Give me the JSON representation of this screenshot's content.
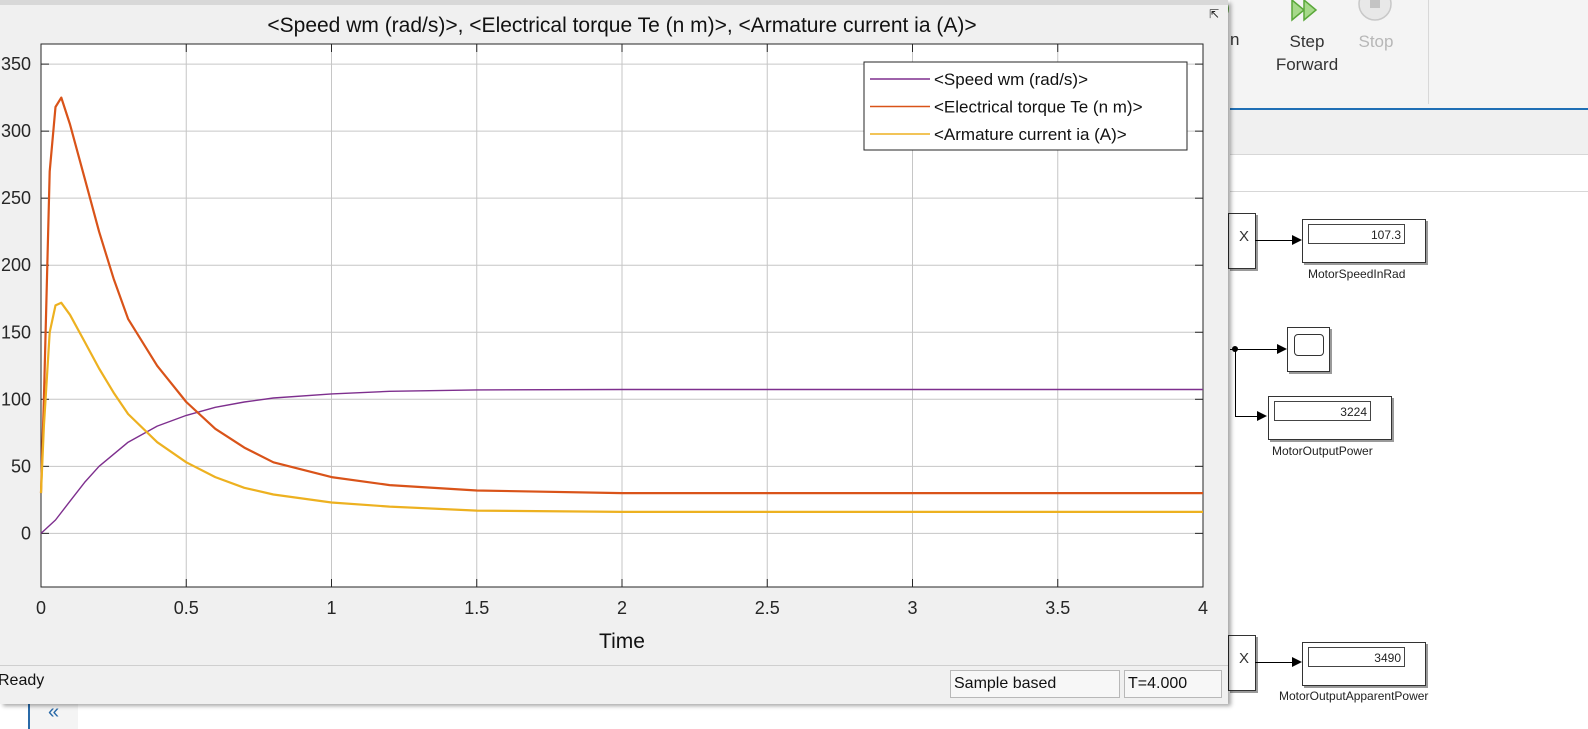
{
  "scope": {
    "status": {
      "ready": "Ready",
      "mode": "Sample based",
      "time": "T=4.000"
    }
  },
  "toolstrip": {
    "partial_label": "n",
    "step_forward_line1": "Step",
    "step_forward_line2": "Forward",
    "stop_label": "Stop"
  },
  "model": {
    "mux_glyph": "X",
    "displays": [
      {
        "value": "107.3",
        "label": "MotorSpeedInRad"
      },
      {
        "value": "3224",
        "label": "MotorOutputPower"
      },
      {
        "value": "3490",
        "label": "MotorOutputApparentPower"
      }
    ],
    "collapse_glyph": "«"
  },
  "chart_data": {
    "type": "line",
    "title": "<Speed wm (rad/s)>, <Electrical torque Te (n m)>, <Armature current ia (A)>",
    "xlabel": "Time",
    "ylabel": "",
    "xlim": [
      0,
      4
    ],
    "ylim": [
      -40,
      365
    ],
    "xticks": [
      0,
      0.5,
      1,
      1.5,
      2,
      2.5,
      3,
      3.5,
      4
    ],
    "xtick_labels": [
      "0",
      "0.5",
      "1",
      "1.5",
      "2",
      "2.5",
      "3",
      "3.5",
      "4"
    ],
    "yticks": [
      0,
      50,
      100,
      150,
      200,
      250,
      300,
      350
    ],
    "ytick_labels": [
      "0",
      "50",
      "100",
      "150",
      "200",
      "250",
      "300",
      "350"
    ],
    "grid": true,
    "legend_position": "top-right",
    "series": [
      {
        "name": "<Speed wm (rad/s)>",
        "color": "#7e2f8e",
        "x": [
          0,
          0.05,
          0.1,
          0.15,
          0.2,
          0.3,
          0.4,
          0.5,
          0.6,
          0.7,
          0.8,
          1.0,
          1.2,
          1.5,
          2.0,
          2.5,
          3.0,
          3.5,
          4.0
        ],
        "y": [
          0,
          10,
          24,
          38,
          50,
          68,
          80,
          88,
          94,
          98,
          101,
          104,
          106,
          107,
          107.3,
          107.3,
          107.3,
          107.3,
          107.3
        ]
      },
      {
        "name": "<Electrical torque Te (n m)>",
        "color": "#d95319",
        "x": [
          0,
          0.01,
          0.03,
          0.05,
          0.07,
          0.1,
          0.15,
          0.2,
          0.25,
          0.3,
          0.4,
          0.5,
          0.6,
          0.7,
          0.8,
          1.0,
          1.2,
          1.5,
          2.0,
          2.5,
          3.0,
          3.5,
          4.0
        ],
        "y": [
          30,
          100,
          270,
          318,
          325,
          305,
          265,
          225,
          190,
          160,
          125,
          98,
          78,
          64,
          53,
          42,
          36,
          32,
          30,
          30,
          30,
          30,
          30
        ]
      },
      {
        "name": "<Armature current ia (A)>",
        "color": "#edb120",
        "x": [
          0,
          0.01,
          0.03,
          0.05,
          0.07,
          0.1,
          0.15,
          0.2,
          0.25,
          0.3,
          0.4,
          0.5,
          0.6,
          0.7,
          0.8,
          1.0,
          1.2,
          1.5,
          2.0,
          2.5,
          3.0,
          3.5,
          4.0
        ],
        "y": [
          30,
          80,
          150,
          170,
          172,
          163,
          143,
          123,
          105,
          89,
          68,
          53,
          42,
          34,
          29,
          23,
          20,
          17,
          16,
          16,
          16,
          16,
          16
        ]
      }
    ]
  }
}
